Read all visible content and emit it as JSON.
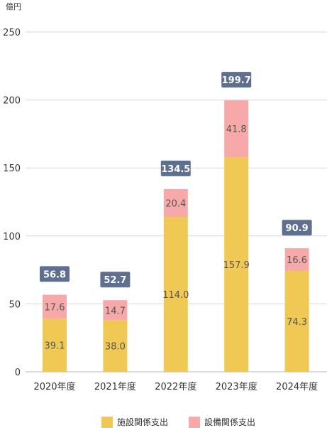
{
  "chart_data": {
    "type": "bar",
    "stacked": true,
    "unit": "億円",
    "categories": [
      "2020年度",
      "2021年度",
      "2022年度",
      "2023年度",
      "2024年度"
    ],
    "series": [
      {
        "name": "施設関係支出",
        "values": [
          39.1,
          38.0,
          114.0,
          157.9,
          74.3
        ],
        "labels": [
          "39.1",
          "38.0",
          "114.0",
          "157.9",
          "74.3"
        ],
        "color": "#f0c955"
      },
      {
        "name": "設備関係支出",
        "values": [
          17.6,
          14.7,
          20.4,
          41.8,
          16.6
        ],
        "labels": [
          "17.6",
          "14.7",
          "20.4",
          "41.8",
          "16.6"
        ],
        "color": "#f7a8a8"
      }
    ],
    "totals": [
      56.8,
      52.7,
      134.5,
      199.7,
      90.9
    ],
    "total_labels": [
      "56.8",
      "52.7",
      "134.5",
      "199.7",
      "90.9"
    ],
    "total_box_color": "#5f6f8f",
    "ylim": [
      0,
      250
    ],
    "yticks": [
      0,
      50,
      100,
      150,
      200,
      250
    ],
    "ytick_labels": [
      "0",
      "50",
      "100",
      "150",
      "200",
      "250"
    ],
    "grid": true,
    "legend_position": "bottom"
  }
}
